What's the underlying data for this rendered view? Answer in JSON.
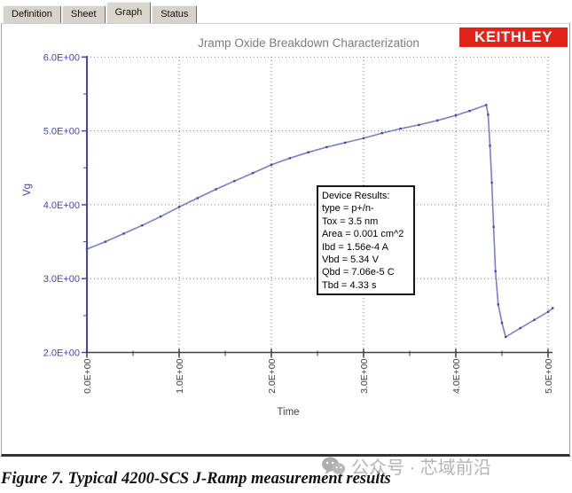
{
  "tabs": {
    "items": [
      {
        "label": "Definition",
        "active": false
      },
      {
        "label": "Sheet",
        "active": false
      },
      {
        "label": "Graph",
        "active": true
      },
      {
        "label": "Status",
        "active": false
      }
    ]
  },
  "logo": {
    "text": "KEITHLEY",
    "background": "#e2231a"
  },
  "chart_data": {
    "type": "line",
    "title": "Jramp Oxide Breakdown Characterization",
    "xlabel": "Time",
    "ylabel": "Vg",
    "xlim": [
      0,
      5
    ],
    "ylim": [
      2,
      6
    ],
    "x_ticks": [
      0,
      1,
      2,
      3,
      4,
      5
    ],
    "x_tick_labels": [
      "0.0E+00",
      "1.0E+00",
      "2.0E+00",
      "3.0E+00",
      "4.0E+00",
      "5.0E+00"
    ],
    "x_minor_ticks": [
      0.5,
      1.5,
      2.5,
      3.5,
      4.5
    ],
    "y_ticks": [
      2,
      3,
      4,
      5,
      6
    ],
    "y_tick_labels": [
      "2.0E+00",
      "3.0E+00",
      "4.0E+00",
      "5.0E+00",
      "6.0E+00"
    ],
    "y_minor_ticks": [
      2.5,
      3.5,
      4.5,
      5.5
    ],
    "grid": "dotted",
    "legend": "none",
    "axis_color_y": "#4446b4",
    "axis_color_x": "#3f3f3f",
    "grid_color": "#7a7a7a",
    "title_color": "#7c7c7c",
    "series": [
      {
        "name": "Vg",
        "color": "#7b7dd0",
        "marker_color": "#4547ae",
        "points": [
          [
            0.0,
            3.4
          ],
          [
            0.2,
            3.5
          ],
          [
            0.4,
            3.61
          ],
          [
            0.6,
            3.72
          ],
          [
            0.8,
            3.84
          ],
          [
            1.0,
            3.97
          ],
          [
            1.2,
            4.09
          ],
          [
            1.4,
            4.21
          ],
          [
            1.6,
            4.32
          ],
          [
            1.8,
            4.43
          ],
          [
            2.0,
            4.54
          ],
          [
            2.2,
            4.63
          ],
          [
            2.4,
            4.71
          ],
          [
            2.6,
            4.78
          ],
          [
            2.8,
            4.84
          ],
          [
            3.0,
            4.9
          ],
          [
            3.2,
            4.97
          ],
          [
            3.4,
            5.03
          ],
          [
            3.6,
            5.08
          ],
          [
            3.8,
            5.14
          ],
          [
            4.0,
            5.21
          ],
          [
            4.15,
            5.27
          ],
          [
            4.33,
            5.35
          ],
          [
            4.35,
            5.22
          ],
          [
            4.37,
            4.8
          ],
          [
            4.39,
            4.3
          ],
          [
            4.41,
            3.7
          ],
          [
            4.43,
            3.1
          ],
          [
            4.46,
            2.65
          ],
          [
            4.5,
            2.4
          ],
          [
            4.54,
            2.21
          ],
          [
            4.7,
            2.33
          ],
          [
            4.85,
            2.44
          ],
          [
            5.0,
            2.55
          ],
          [
            5.05,
            2.6
          ]
        ]
      }
    ]
  },
  "device_results": {
    "lines": [
      "Device Results:",
      "type = p+/n-",
      "Tox = 3.5 nm",
      "Area = 0.001 cm^2",
      "Ibd = 1.56e-4 A",
      "Vbd = 5.34 V",
      "Qbd = 7.06e-5 C",
      "Tbd = 4.33 s"
    ]
  },
  "caption": {
    "text": "Figure 7. Typical 4200-SCS J-Ramp measurement results"
  },
  "watermark": {
    "text": "公众号 · 芯域前沿"
  }
}
